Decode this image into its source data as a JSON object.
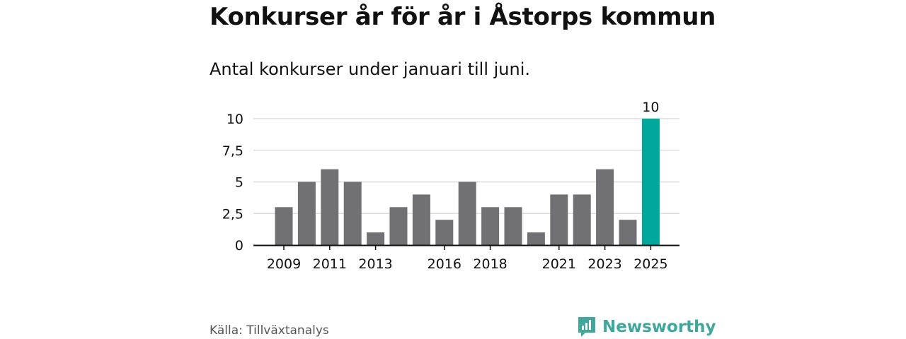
{
  "header": {
    "title": "Konkurser år för år i Åstorps kommun",
    "subtitle": "Antal konkurser under januari till juni."
  },
  "footer": {
    "source": "Källa: Tillväxtanalys",
    "brand": "Newsworthy"
  },
  "colors": {
    "bar": "#707075",
    "highlight": "#00a89b",
    "grid": "#dddddd",
    "brand": "#3fa79c"
  },
  "icons": {
    "brand_logo": "newsworthy-logo-icon"
  },
  "chart_data": {
    "type": "bar",
    "categories": [
      "2009",
      "2010",
      "2011",
      "2012",
      "2013",
      "2014",
      "2015",
      "2016",
      "2017",
      "2018",
      "2019",
      "2020",
      "2021",
      "2022",
      "2023",
      "2024",
      "2025"
    ],
    "values": [
      3,
      5,
      6,
      5,
      1,
      3,
      4,
      2,
      5,
      3,
      3,
      1,
      4,
      4,
      6,
      2,
      10
    ],
    "x_tick_labels": [
      "2009",
      "2011",
      "2013",
      "2016",
      "2018",
      "2021",
      "2023",
      "2025"
    ],
    "y_ticks": [
      0,
      2.5,
      5,
      7.5,
      10
    ],
    "y_tick_labels": [
      "0",
      "2,5",
      "5",
      "7,5",
      "10"
    ],
    "ylim": [
      0,
      10
    ],
    "highlight_category": "2025",
    "data_labels": [
      {
        "category": "2025",
        "text": "10"
      }
    ],
    "xlabel": "",
    "ylabel": "",
    "grid": true,
    "legend": "none"
  }
}
